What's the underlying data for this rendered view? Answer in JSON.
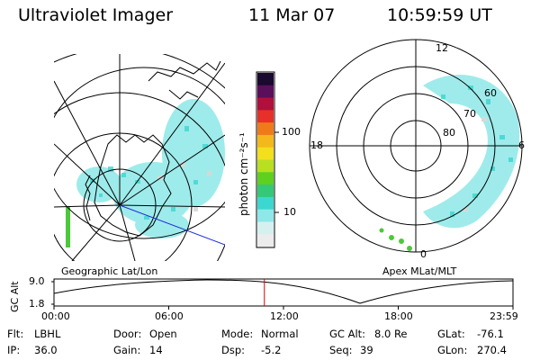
{
  "header": {
    "instrument": "Ultraviolet Imager",
    "date": "11 Mar 07",
    "time": "10:59:59 UT"
  },
  "colorbar": {
    "label": "photon cm⁻²s⁻¹",
    "ticks": [
      "100",
      "10"
    ],
    "colors": [
      "#1a0a2e",
      "#5a0f5a",
      "#b0103a",
      "#e8302a",
      "#f07a1a",
      "#f4b81c",
      "#f2e01c",
      "#b8e020",
      "#5fd020",
      "#34c878",
      "#3cd8d0",
      "#8ee8e8",
      "#d6f0f0",
      "#ececec"
    ]
  },
  "left_panel": {
    "caption": "Geographic Lat/Lon"
  },
  "right_panel": {
    "caption": "Apex MLat/MLT",
    "mlt_labels": [
      "12",
      "18",
      "6",
      "0"
    ],
    "lat_labels": [
      "60",
      "70",
      "80"
    ]
  },
  "timeline": {
    "ylabel": "GC Alt",
    "ytick_top": "9.0",
    "ytick_bottom": "1.8",
    "x_ticks": [
      "00:00",
      "06:00",
      "12:00",
      "18:00",
      "23:59"
    ],
    "marker_time_hours": 11.0,
    "marker_color": "#e00000"
  },
  "info": {
    "flt_label": "Flt:",
    "flt_value": "LBHL",
    "ip_label": "IP:",
    "ip_value": "36.0",
    "door_label": "Door:",
    "door_value": "Open",
    "gain_label": "Gain:",
    "gain_value": "14",
    "mode_label": "Mode:",
    "mode_value": "Normal",
    "dsp_label": "Dsp:",
    "dsp_value": "-5.2",
    "gcalt_label": "GC Alt:",
    "gcalt_value": "8.0 Re",
    "seq_label": "Seq:",
    "seq_value": "39",
    "glat_label": "GLat:",
    "glat_value": "-76.1",
    "glon_label": "GLon:",
    "glon_value": "270.4"
  }
}
